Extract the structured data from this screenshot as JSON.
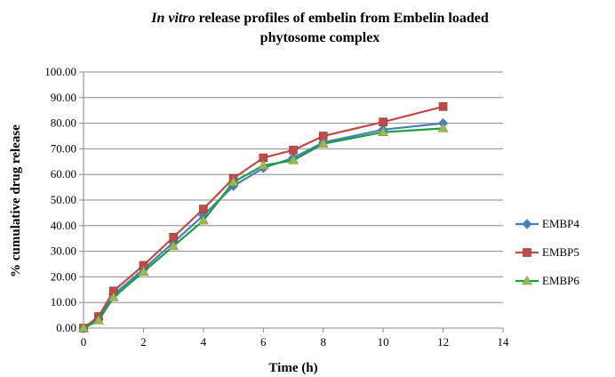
{
  "chart_data": {
    "type": "line",
    "title_italic": "In vitro",
    "title_rest": " release profiles of embelin from Embelin loaded",
    "title_line2": "phytosome complex",
    "xlabel": "Time (h)",
    "ylabel": "% cumulative drug release",
    "xlim": [
      0,
      14
    ],
    "ylim": [
      0,
      100
    ],
    "xticks": [
      "0",
      "2",
      "4",
      "6",
      "8",
      "10",
      "12",
      "14"
    ],
    "yticks": [
      "0.00",
      "10.00",
      "20.00",
      "30.00",
      "40.00",
      "50.00",
      "60.00",
      "70.00",
      "80.00",
      "90.00",
      "100.00"
    ],
    "grid": "horizontal",
    "legend_position": "right",
    "x": [
      0,
      0.5,
      1,
      2,
      3,
      4,
      5,
      6,
      7,
      8,
      10,
      12
    ],
    "series": [
      {
        "name": "EMBP4",
        "color": "#4a7ebb",
        "marker": "diamond",
        "values": [
          0,
          3.5,
          13,
          23,
          33.5,
          44,
          55.5,
          62.5,
          66.5,
          72.5,
          77.5,
          80
        ]
      },
      {
        "name": "EMBP5",
        "color": "#be4b48",
        "marker": "square",
        "values": [
          0,
          4.5,
          14.5,
          24.5,
          35.5,
          46.5,
          58.5,
          66.5,
          69.5,
          75,
          80.5,
          86.5
        ]
      },
      {
        "name": "EMBP6",
        "color": "#98b954",
        "line_color": "#1a9f3f",
        "marker": "triangle",
        "values": [
          0,
          3,
          12,
          22,
          32,
          42,
          57,
          63.5,
          65.5,
          72,
          76.5,
          78
        ]
      }
    ]
  }
}
